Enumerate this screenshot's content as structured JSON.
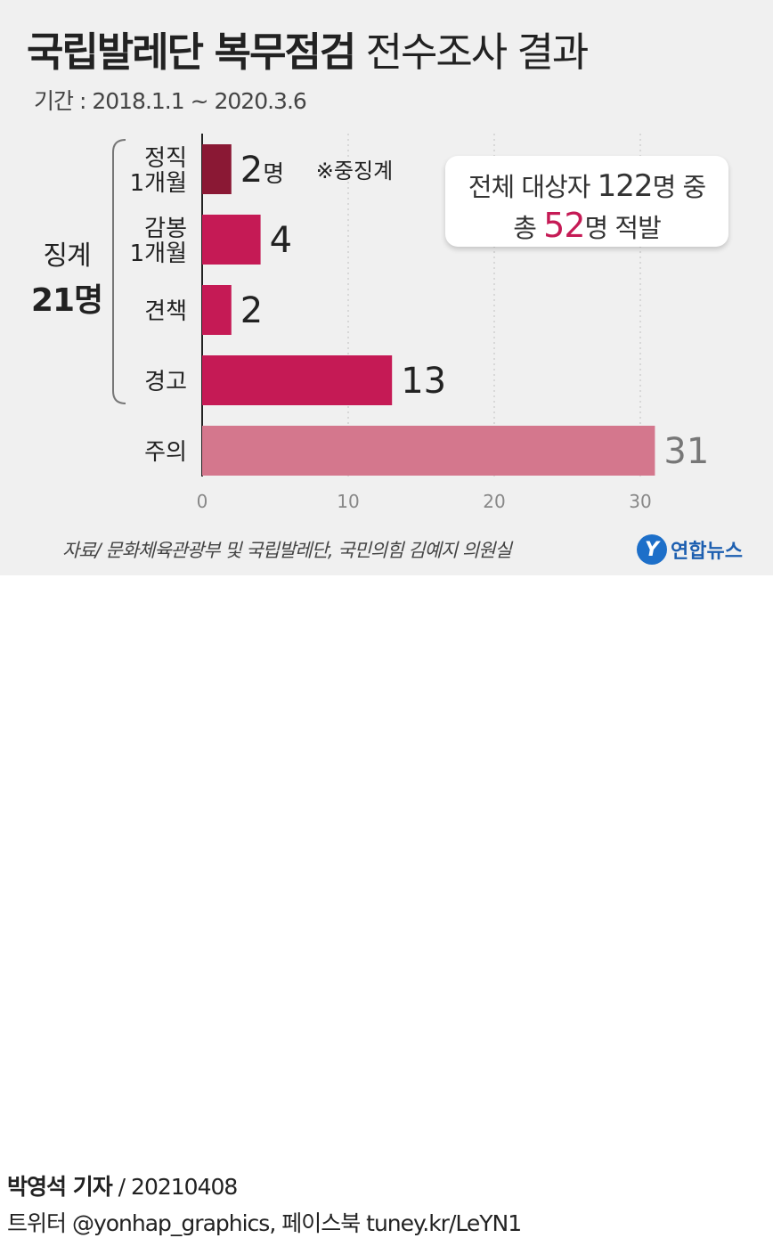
{
  "header": {
    "title_bold": "국립발레단 복무점검",
    "title_light": "전수조사 결과",
    "period": "기간 : 2018.1.1 ~ 2020.3.6"
  },
  "summary": {
    "line1_pre": "전체 대상자 ",
    "line1_num": "122",
    "line1_post": "명 중",
    "line2_pre": "총 ",
    "line2_num": "52",
    "line2_post": "명 적발"
  },
  "group": {
    "label": "징계",
    "count": "21명"
  },
  "note": "※중징계",
  "colors": {
    "heavy": "#8a1834",
    "discipline": "#c51a55",
    "caution": "#d4778d",
    "highlight": "#c51a55"
  },
  "chart_data": {
    "type": "bar",
    "orientation": "horizontal",
    "categories": [
      "정직 1개월",
      "감봉 1개월",
      "견책",
      "경고",
      "주의"
    ],
    "category_lines": [
      [
        "정직",
        "1개월"
      ],
      [
        "감봉",
        "1개월"
      ],
      [
        "견책"
      ],
      [
        "경고"
      ],
      [
        "주의"
      ]
    ],
    "values": [
      2,
      4,
      2,
      13,
      31
    ],
    "value_labels": [
      "2명",
      "4",
      "2",
      "13",
      "31"
    ],
    "xlim": [
      0,
      32
    ],
    "xticks": [
      0,
      10,
      20,
      30
    ],
    "grid": true,
    "title": "국립발레단 복무점검 전수조사 결과"
  },
  "footer": {
    "source": "자료/ 문화체육관광부 및 국립발레단, 국민의힘 김예지 의원실",
    "logo_text": "연합뉴스",
    "reporter_name": "박영석 기자",
    "reporter_rest": " /  20210408",
    "sns": "트위터 @yonhap_graphics, 페이스북 tuney.kr/LeYN1"
  }
}
